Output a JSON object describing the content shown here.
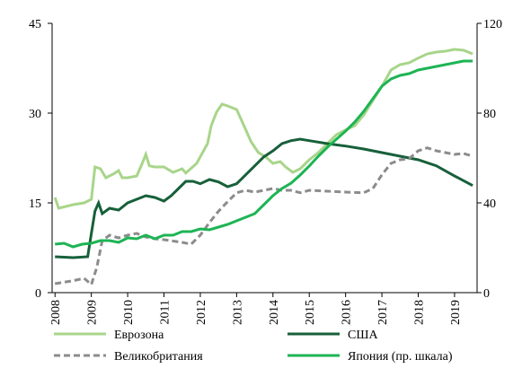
{
  "chart_data": {
    "type": "line",
    "xlim": [
      2007.92,
      2019.62
    ],
    "xticks": [
      2008,
      2009,
      2010,
      2011,
      2012,
      2013,
      2014,
      2015,
      2016,
      2017,
      2018,
      2019
    ],
    "ylim": [
      0,
      45
    ],
    "yticks": [
      0,
      15,
      30,
      45
    ],
    "y2lim": [
      0,
      120
    ],
    "y2ticks": [
      0,
      40,
      80,
      120
    ],
    "legend": "bottom",
    "series": [
      {
        "name": "Еврозона",
        "color": "#a8d58a",
        "style": "solid",
        "x": [
          2008,
          2008.1,
          2008.5,
          2008.8,
          2009,
          2009.1,
          2009.25,
          2009.4,
          2009.6,
          2009.75,
          2009.85,
          2010,
          2010.25,
          2010.4,
          2010.5,
          2010.6,
          2010.75,
          2011,
          2011.25,
          2011.5,
          2011.6,
          2011.9,
          2012,
          2012.2,
          2012.3,
          2012.45,
          2012.6,
          2012.75,
          2013,
          2013.2,
          2013.4,
          2013.6,
          2013.8,
          2014,
          2014.2,
          2014.35,
          2014.55,
          2014.75,
          2014.9,
          2015,
          2015.25,
          2015.5,
          2015.75,
          2016,
          2016.25,
          2016.5,
          2016.75,
          2017,
          2017.25,
          2017.5,
          2017.75,
          2018,
          2018.25,
          2018.5,
          2018.75,
          2019,
          2019.25,
          2019.5
        ],
        "values": [
          15.9,
          14.1,
          14.7,
          15,
          15.6,
          21,
          20.7,
          19.2,
          19.8,
          20.4,
          19.2,
          19.2,
          19.5,
          21.6,
          23.1,
          21.2,
          21,
          21,
          20.1,
          20.7,
          20,
          21.6,
          22.7,
          24.9,
          27.9,
          30.2,
          31.5,
          31.2,
          30.6,
          27.9,
          25.2,
          23.4,
          22.7,
          21.6,
          21.9,
          21,
          20.1,
          20.7,
          21.6,
          22.2,
          23.4,
          24.9,
          26.4,
          27.2,
          27.9,
          29.7,
          32.1,
          34.5,
          37.2,
          38.1,
          38.4,
          39.2,
          39.9,
          40.2,
          40.35,
          40.65,
          40.5,
          39.9
        ]
      },
      {
        "name": "США",
        "color": "#17603a",
        "style": "solid",
        "x": [
          2008,
          2008.5,
          2008.9,
          2009,
          2009.1,
          2009.2,
          2009.3,
          2009.5,
          2009.75,
          2010,
          2010.25,
          2010.5,
          2010.75,
          2011,
          2011.2,
          2011.4,
          2011.6,
          2011.8,
          2012,
          2012.25,
          2012.5,
          2012.75,
          2013,
          2013.25,
          2013.5,
          2013.75,
          2014,
          2014.25,
          2014.5,
          2014.75,
          2015,
          2015.5,
          2016,
          2016.5,
          2017,
          2017.5,
          2018,
          2018.5,
          2019,
          2019.5
        ],
        "values": [
          6,
          5.85,
          6,
          9.9,
          13.6,
          15,
          13.2,
          14.1,
          13.8,
          15,
          15.6,
          16.2,
          15.9,
          15.3,
          16.2,
          17.4,
          18.6,
          18.6,
          18.2,
          18.9,
          18.5,
          17.7,
          18.2,
          19.7,
          21.2,
          22.7,
          23.7,
          24.9,
          25.4,
          25.65,
          25.4,
          24.9,
          24.5,
          24,
          23.4,
          22.8,
          22.2,
          21.2,
          19.5,
          17.9
        ]
      },
      {
        "name": "Великобритания",
        "color": "#8c8c8c",
        "style": "dashed",
        "x": [
          2008,
          2008.5,
          2008.8,
          2009,
          2009.15,
          2009.3,
          2009.5,
          2009.75,
          2010,
          2010.25,
          2010.5,
          2010.75,
          2011,
          2011.5,
          2011.75,
          2012,
          2012.25,
          2012.5,
          2012.75,
          2013,
          2013.25,
          2013.5,
          2013.75,
          2014,
          2014.25,
          2014.5,
          2014.75,
          2015,
          2015.5,
          2016,
          2016.5,
          2016.75,
          2017,
          2017.25,
          2017.5,
          2017.75,
          2018,
          2018.25,
          2018.5,
          2018.75,
          2019,
          2019.25,
          2019.5
        ],
        "values": [
          1.5,
          2,
          2.4,
          1.35,
          4.2,
          8.7,
          9.6,
          9.15,
          9.6,
          9.9,
          9.3,
          9,
          8.85,
          8.4,
          8.1,
          9.6,
          11.7,
          13.6,
          15.2,
          16.7,
          17.1,
          16.8,
          17.1,
          17.4,
          17.1,
          17.1,
          16.7,
          17.1,
          16.95,
          16.8,
          16.7,
          17.4,
          19.7,
          21.6,
          22.2,
          22.4,
          23.7,
          24.2,
          23.7,
          23.4,
          23.1,
          23.25,
          22.8
        ]
      },
      {
        "name": "Япония (пр. шкала)",
        "color": "#1db454",
        "style": "solid",
        "axis": "y2",
        "x": [
          2008,
          2008.25,
          2008.5,
          2008.75,
          2009,
          2009.25,
          2009.5,
          2009.75,
          2010,
          2010.25,
          2010.5,
          2010.75,
          2011,
          2011.25,
          2011.5,
          2011.75,
          2012,
          2012.25,
          2012.5,
          2012.75,
          2013,
          2013.25,
          2013.5,
          2013.75,
          2014,
          2014.25,
          2014.5,
          2014.75,
          2015,
          2015.25,
          2015.5,
          2015.75,
          2016,
          2016.25,
          2016.5,
          2016.75,
          2017,
          2017.25,
          2017.5,
          2017.75,
          2018,
          2018.25,
          2018.5,
          2018.75,
          2019,
          2019.25,
          2019.5
        ],
        "values": [
          21.6,
          22,
          20.4,
          21.6,
          22,
          23.2,
          23.2,
          22.4,
          24.4,
          24,
          25.6,
          24,
          25.6,
          25.6,
          27.2,
          27.2,
          28.4,
          28,
          29.2,
          30.4,
          32,
          33.6,
          35.2,
          39.2,
          43.2,
          46.4,
          48.8,
          52.4,
          56.4,
          60.8,
          64.8,
          68.4,
          72,
          76,
          80.8,
          86.4,
          92,
          95.2,
          96.8,
          97.6,
          99.2,
          100,
          100.8,
          101.6,
          102.4,
          103.2,
          103.2
        ]
      }
    ]
  }
}
